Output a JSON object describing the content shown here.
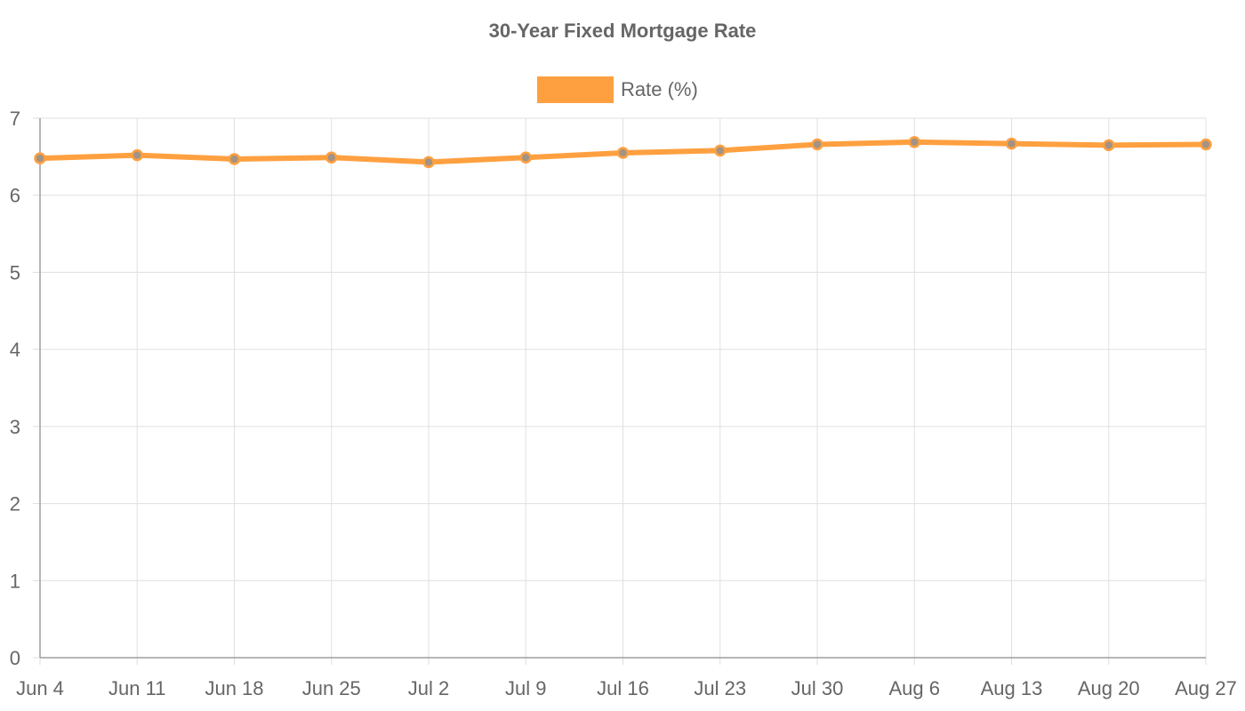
{
  "chart_data": {
    "type": "line",
    "title": "30-Year Fixed Mortgage Rate",
    "xlabel": "",
    "ylabel": "",
    "categories": [
      "Jun 4",
      "Jun 11",
      "Jun 18",
      "Jun 25",
      "Jul 2",
      "Jul 9",
      "Jul 16",
      "Jul 23",
      "Jul 30",
      "Aug 6",
      "Aug 13",
      "Aug 20",
      "Aug 27"
    ],
    "series": [
      {
        "name": "Rate (%)",
        "color": "#ffa040",
        "values": [
          6.48,
          6.52,
          6.47,
          6.49,
          6.43,
          6.49,
          6.55,
          6.58,
          6.66,
          6.69,
          6.67,
          6.65,
          6.66
        ]
      }
    ],
    "ylim": [
      0,
      7
    ],
    "yticks": [
      0,
      1,
      2,
      3,
      4,
      5,
      6,
      7
    ],
    "grid": true,
    "legend_position": "top-center"
  }
}
